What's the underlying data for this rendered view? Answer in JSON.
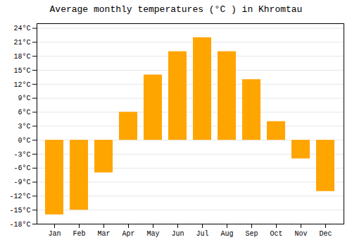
{
  "chart_data": {
    "type": "bar",
    "title": "Average monthly temperatures (°C ) in Khromtau",
    "categories": [
      "Jan",
      "Feb",
      "Mar",
      "Apr",
      "May",
      "Jun",
      "Jul",
      "Aug",
      "Sep",
      "Oct",
      "Nov",
      "Dec"
    ],
    "values": [
      -16,
      -15,
      -7,
      6,
      14,
      19,
      22,
      19,
      13,
      4,
      -4,
      -11
    ],
    "color": "#FFA500",
    "ylim": [
      -18,
      25
    ],
    "yticks": [
      {
        "value": -18,
        "label": "-18°C"
      },
      {
        "value": -15,
        "label": "-15°C"
      },
      {
        "value": -12,
        "label": "-12°C"
      },
      {
        "value": -9,
        "label": "-9°C"
      },
      {
        "value": -6,
        "label": "-6°C"
      },
      {
        "value": -3,
        "label": "-3°C"
      },
      {
        "value": 0,
        "label": "0°C"
      },
      {
        "value": 3,
        "label": "3°C"
      },
      {
        "value": 6,
        "label": "6°C"
      },
      {
        "value": 9,
        "label": "9°C"
      },
      {
        "value": 12,
        "label": "12°C"
      },
      {
        "value": 15,
        "label": "15°C"
      },
      {
        "value": 18,
        "label": "18°C"
      },
      {
        "value": 21,
        "label": "21°C"
      },
      {
        "value": 24,
        "label": "24°C"
      }
    ],
    "grid": true
  }
}
